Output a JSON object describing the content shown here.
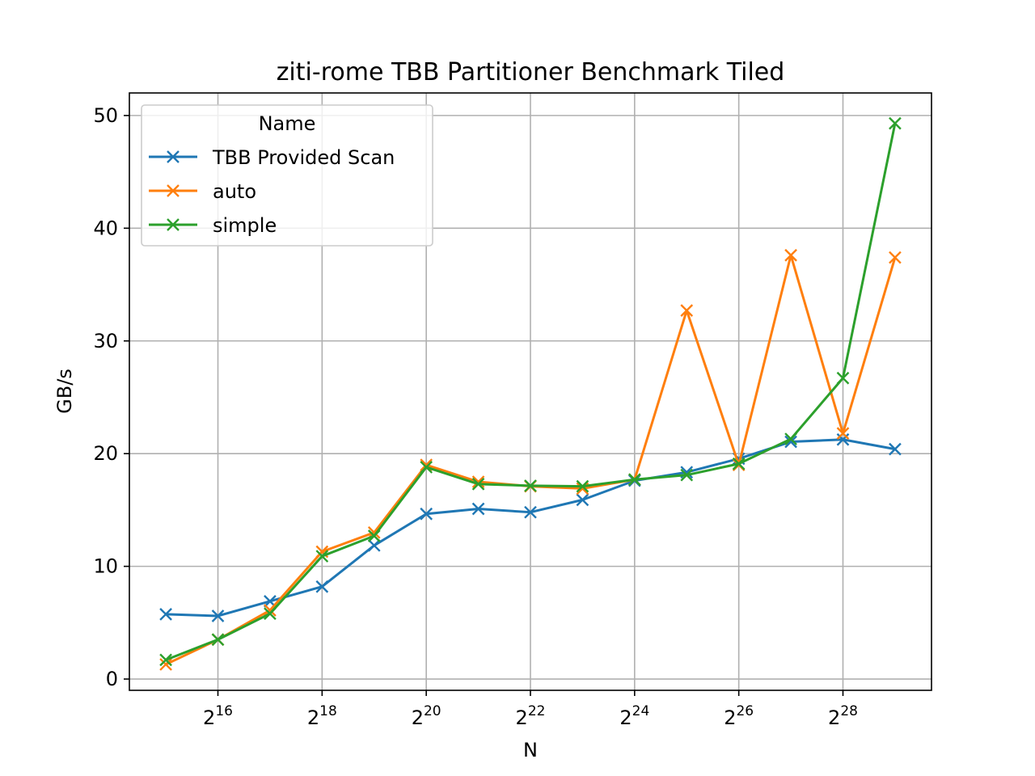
{
  "chart_data": {
    "type": "line",
    "title": "ziti-rome TBB Partitioner Benchmark Tiled",
    "xlabel": "N",
    "ylabel": "GB/s",
    "x_scale": "log2",
    "x": [
      32768,
      65536,
      131072,
      262144,
      524288,
      1048576,
      2097152,
      4194304,
      8388608,
      16777216,
      33554432,
      67108864,
      134217728,
      268435456,
      536870912
    ],
    "x_ticks": [
      {
        "value": 65536,
        "base": "2",
        "exp": "16"
      },
      {
        "value": 262144,
        "base": "2",
        "exp": "18"
      },
      {
        "value": 1048576,
        "base": "2",
        "exp": "20"
      },
      {
        "value": 4194304,
        "base": "2",
        "exp": "22"
      },
      {
        "value": 16777216,
        "base": "2",
        "exp": "24"
      },
      {
        "value": 67108864,
        "base": "2",
        "exp": "26"
      },
      {
        "value": 268435456,
        "base": "2",
        "exp": "28"
      }
    ],
    "y_ticks": [
      "0",
      "10",
      "20",
      "30",
      "40",
      "50"
    ],
    "ylim": [
      -1,
      52
    ],
    "grid": true,
    "marker": "x",
    "legend": {
      "title": "Name",
      "placement": "top-left"
    },
    "series": [
      {
        "name": "TBB Provided Scan",
        "color": "#1f77b4",
        "values": [
          5.75,
          5.6,
          6.9,
          8.2,
          11.85,
          14.65,
          15.1,
          14.8,
          15.9,
          17.6,
          18.35,
          19.55,
          21.05,
          21.25,
          20.4
        ]
      },
      {
        "name": "auto",
        "color": "#ff7f0e",
        "values": [
          1.3,
          3.5,
          6.1,
          11.3,
          13.0,
          19.0,
          17.5,
          17.1,
          16.9,
          17.7,
          32.7,
          19.0,
          37.6,
          21.8,
          37.4
        ]
      },
      {
        "name": "simple",
        "color": "#2ca02c",
        "values": [
          1.7,
          3.5,
          5.8,
          10.9,
          12.7,
          18.8,
          17.3,
          17.15,
          17.1,
          17.7,
          18.1,
          19.1,
          21.3,
          26.7,
          49.3
        ]
      }
    ]
  }
}
